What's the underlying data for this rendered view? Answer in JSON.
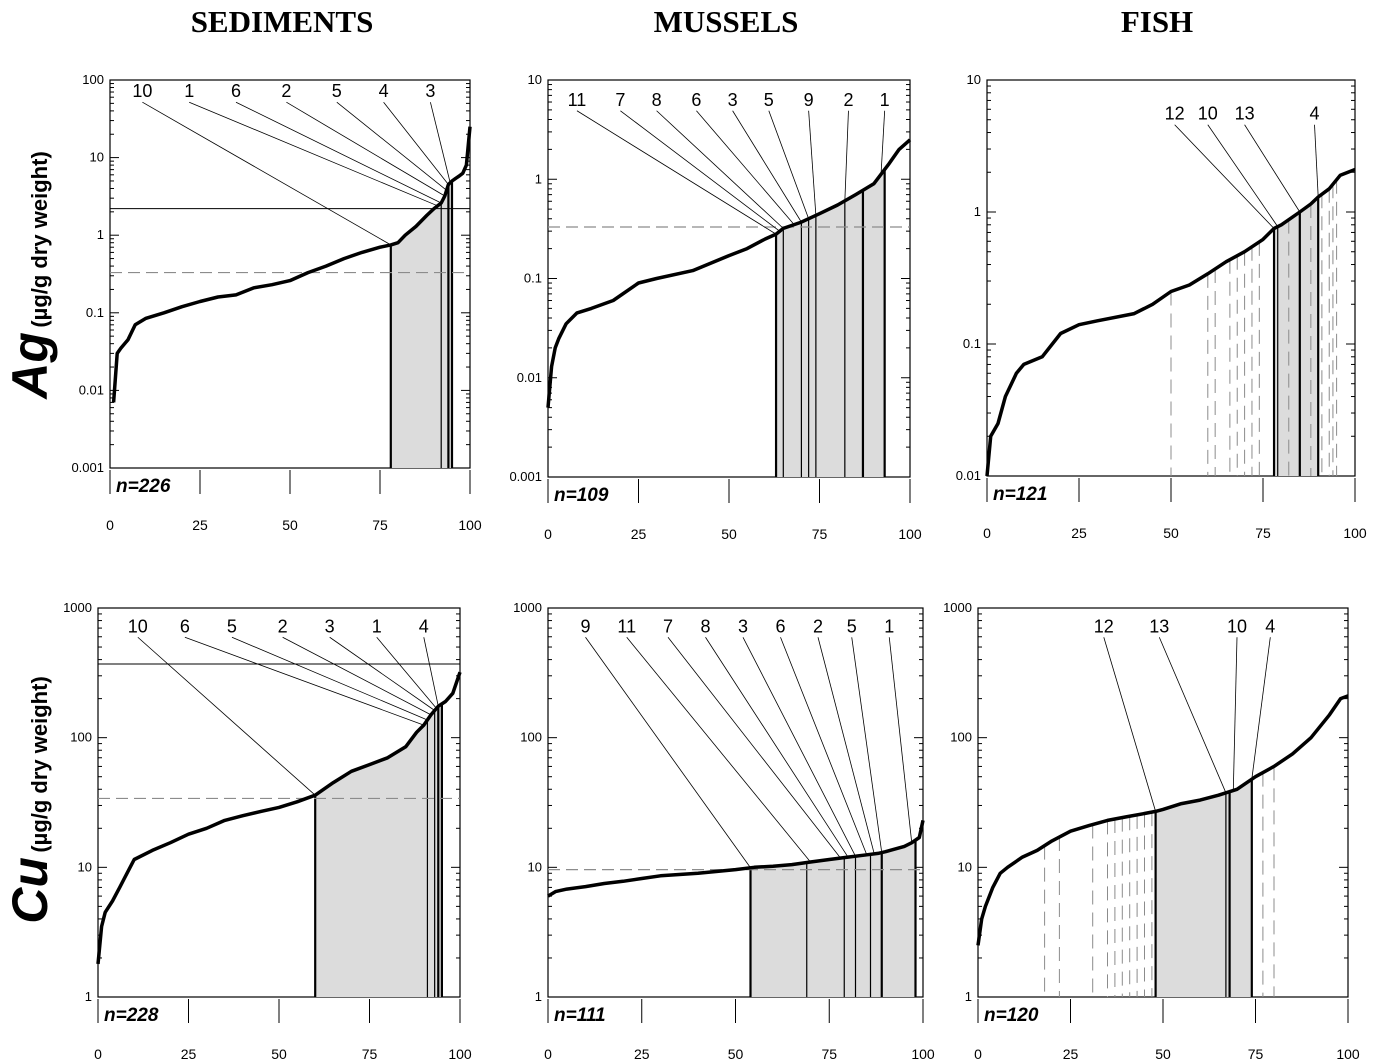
{
  "column_titles": [
    "SEDIMENTS",
    "MUSSELS",
    "FISH"
  ],
  "row_labels": [
    {
      "element": "Ag",
      "unit": "(µg/g dry weight)"
    },
    {
      "element": "Cu",
      "unit": "(µg/g dry weight)"
    }
  ],
  "colors": {
    "line": "#000000",
    "fill": "#dcdcdc",
    "dashed": "#8c8c8c"
  },
  "chart_data": [
    {
      "id": "ag-sediments",
      "type": "line",
      "title": "SEDIMENTS",
      "yscale": "log",
      "xlim": [
        0,
        100
      ],
      "ylim": [
        0.001,
        100
      ],
      "xticks": [
        0,
        25,
        50,
        75,
        100
      ],
      "yticks": [
        0.001,
        0.01,
        0.1,
        1,
        10,
        100
      ],
      "ytick_labels": [
        "0.001",
        "0.01",
        "0.1",
        "1",
        "10",
        "100"
      ],
      "n_label": "n=226",
      "x": [
        1,
        2,
        3,
        5,
        7,
        10,
        15,
        20,
        25,
        30,
        35,
        40,
        45,
        50,
        55,
        60,
        65,
        70,
        75,
        78,
        80,
        82,
        85,
        88,
        90,
        92,
        93,
        94,
        95,
        96,
        97,
        98,
        99,
        100
      ],
      "y": [
        0.007,
        0.03,
        0.035,
        0.045,
        0.07,
        0.085,
        0.1,
        0.12,
        0.14,
        0.16,
        0.17,
        0.21,
        0.23,
        0.26,
        0.33,
        0.4,
        0.5,
        0.6,
        0.7,
        0.75,
        0.8,
        1.0,
        1.3,
        1.8,
        2.2,
        2.6,
        3.2,
        4.5,
        5.0,
        5.4,
        5.8,
        6.3,
        8.0,
        25
      ],
      "solid_hline": 2.2,
      "dashed_hline": 0.33,
      "shade_from": 78,
      "shade_to": 95,
      "shade_lines": [
        78,
        92,
        94,
        95
      ],
      "label_y": 60,
      "stations": [
        {
          "label": "10",
          "lx": 9,
          "px": 78
        },
        {
          "label": "1",
          "lx": 22,
          "px": 91
        },
        {
          "label": "6",
          "lx": 35,
          "px": 92
        },
        {
          "label": "2",
          "lx": 49,
          "px": 93
        },
        {
          "label": "5",
          "lx": 63,
          "px": 93.5
        },
        {
          "label": "4",
          "lx": 76,
          "px": 94
        },
        {
          "label": "3",
          "lx": 89,
          "px": 94.5
        }
      ]
    },
    {
      "id": "ag-mussels",
      "type": "line",
      "title": "MUSSELS",
      "yscale": "log",
      "xlim": [
        0,
        100
      ],
      "ylim": [
        0.001,
        10
      ],
      "xticks": [
        0,
        25,
        50,
        75,
        100
      ],
      "yticks": [
        0.001,
        0.01,
        0.1,
        1,
        10
      ],
      "ytick_labels": [
        "0.001",
        "0.01",
        "0.1",
        "1",
        "10"
      ],
      "n_label": "n=109",
      "x": [
        0,
        1,
        2,
        3,
        5,
        8,
        12,
        18,
        25,
        30,
        40,
        50,
        55,
        60,
        63,
        65,
        70,
        75,
        80,
        85,
        90,
        94,
        97,
        100
      ],
      "y": [
        0.005,
        0.013,
        0.02,
        0.025,
        0.035,
        0.045,
        0.05,
        0.06,
        0.09,
        0.1,
        0.12,
        0.17,
        0.2,
        0.25,
        0.28,
        0.32,
        0.37,
        0.45,
        0.55,
        0.7,
        0.9,
        1.4,
        2.0,
        2.5
      ],
      "solid_hline": null,
      "dashed_hline": 0.33,
      "shade_from": 63,
      "shade_to": 93,
      "shade_lines": [
        63,
        65,
        70,
        72,
        74,
        82,
        87,
        93
      ],
      "label_y": 5.5,
      "stations": [
        {
          "label": "11",
          "lx": 8,
          "px": 63
        },
        {
          "label": "7",
          "lx": 20,
          "px": 64
        },
        {
          "label": "8",
          "lx": 30,
          "px": 65
        },
        {
          "label": "6",
          "lx": 41,
          "px": 68
        },
        {
          "label": "3",
          "lx": 51,
          "px": 70
        },
        {
          "label": "5",
          "lx": 61,
          "px": 72
        },
        {
          "label": "9",
          "lx": 72,
          "px": 74
        },
        {
          "label": "2",
          "lx": 83,
          "px": 82
        },
        {
          "label": "1",
          "lx": 93,
          "px": 92
        }
      ]
    },
    {
      "id": "ag-fish",
      "type": "line",
      "title": "FISH",
      "yscale": "log",
      "xlim": [
        0,
        100
      ],
      "ylim": [
        0.01,
        10
      ],
      "xticks": [
        0,
        25,
        50,
        75,
        100
      ],
      "yticks": [
        0.01,
        0.1,
        1,
        10
      ],
      "ytick_labels": [
        "0.01",
        "0.1",
        "1",
        "10"
      ],
      "n_label": "n=121",
      "x": [
        0,
        1,
        3,
        5,
        8,
        10,
        15,
        20,
        25,
        30,
        40,
        45,
        50,
        55,
        60,
        65,
        70,
        75,
        78,
        80,
        85,
        88,
        90,
        93,
        96,
        100
      ],
      "y": [
        0.01,
        0.02,
        0.025,
        0.04,
        0.06,
        0.07,
        0.08,
        0.12,
        0.14,
        0.15,
        0.17,
        0.2,
        0.25,
        0.28,
        0.34,
        0.42,
        0.5,
        0.62,
        0.75,
        0.8,
        1.0,
        1.15,
        1.3,
        1.5,
        1.9,
        2.1
      ],
      "solid_hline": null,
      "dashed_hline": null,
      "shade_from": 78,
      "shade_to": 90,
      "shade_lines": [
        78,
        79,
        85,
        90
      ],
      "dashed_vlines": [
        50,
        60,
        62,
        66,
        68,
        70,
        72,
        74,
        82,
        88,
        91,
        93,
        94,
        95
      ],
      "label_y": 5.0,
      "stations": [
        {
          "label": "12",
          "lx": 51,
          "px": 78
        },
        {
          "label": "10",
          "lx": 60,
          "px": 79
        },
        {
          "label": "13",
          "lx": 70,
          "px": 85
        },
        {
          "label": "4",
          "lx": 89,
          "px": 90
        }
      ]
    },
    {
      "id": "cu-sediments",
      "type": "line",
      "title": "SEDIMENTS",
      "yscale": "log",
      "xlim": [
        0,
        100
      ],
      "ylim": [
        1,
        1000
      ],
      "xticks": [
        0,
        25,
        50,
        75,
        100
      ],
      "yticks": [
        1,
        10,
        100,
        1000
      ],
      "ytick_labels": [
        "1",
        "10",
        "100",
        "1000"
      ],
      "n_label": "n=228",
      "x": [
        0,
        1,
        2,
        4,
        6,
        8,
        10,
        15,
        20,
        25,
        30,
        35,
        40,
        45,
        50,
        55,
        60,
        65,
        70,
        75,
        80,
        85,
        88,
        90,
        92,
        94,
        96,
        98,
        100
      ],
      "y": [
        1.8,
        3.5,
        4.5,
        5.5,
        7,
        9,
        11.5,
        13.5,
        15.5,
        18,
        20,
        23,
        25,
        27,
        29,
        32,
        36,
        45,
        55,
        62,
        70,
        85,
        110,
        125,
        150,
        175,
        190,
        220,
        320
      ],
      "solid_hline": 370,
      "dashed_hline": 34,
      "shade_from": 60,
      "shade_to": 95,
      "shade_lines": [
        60,
        91,
        93,
        94,
        95
      ],
      "label_y": 650,
      "stations": [
        {
          "label": "10",
          "lx": 11,
          "px": 60
        },
        {
          "label": "6",
          "lx": 24,
          "px": 90
        },
        {
          "label": "5",
          "lx": 37,
          "px": 91
        },
        {
          "label": "2",
          "lx": 51,
          "px": 92
        },
        {
          "label": "3",
          "lx": 64,
          "px": 93
        },
        {
          "label": "1",
          "lx": 77,
          "px": 93.5
        },
        {
          "label": "4",
          "lx": 90,
          "px": 94
        }
      ]
    },
    {
      "id": "cu-mussels",
      "type": "line",
      "title": "MUSSELS",
      "yscale": "log",
      "xlim": [
        0,
        100
      ],
      "ylim": [
        1,
        1000
      ],
      "xticks": [
        0,
        25,
        50,
        75,
        100
      ],
      "yticks": [
        1,
        10,
        100,
        1000
      ],
      "ytick_labels": [
        "1",
        "10",
        "100",
        "1000"
      ],
      "n_label": "n=111",
      "x": [
        0,
        2,
        5,
        10,
        15,
        20,
        25,
        30,
        40,
        50,
        55,
        60,
        65,
        70,
        75,
        80,
        85,
        88,
        90,
        95,
        97,
        99,
        100
      ],
      "y": [
        6,
        6.5,
        6.8,
        7.1,
        7.5,
        7.8,
        8.2,
        8.6,
        9.0,
        9.6,
        10.0,
        10.2,
        10.5,
        11.0,
        11.5,
        12.0,
        12.5,
        12.8,
        13.2,
        14.5,
        15.5,
        17,
        23
      ],
      "solid_hline": null,
      "dashed_hline": 9.6,
      "shade_from": 54,
      "shade_to": 98,
      "shade_lines": [
        54,
        69,
        79,
        82,
        86,
        89,
        98
      ],
      "label_y": 650,
      "stations": [
        {
          "label": "9",
          "lx": 10,
          "px": 54
        },
        {
          "label": "11",
          "lx": 21,
          "px": 70
        },
        {
          "label": "7",
          "lx": 32,
          "px": 78
        },
        {
          "label": "8",
          "lx": 42,
          "px": 80
        },
        {
          "label": "3",
          "lx": 52,
          "px": 82
        },
        {
          "label": "6",
          "lx": 62,
          "px": 85
        },
        {
          "label": "2",
          "lx": 72,
          "px": 87
        },
        {
          "label": "5",
          "lx": 81,
          "px": 89
        },
        {
          "label": "1",
          "lx": 91,
          "px": 97
        }
      ]
    },
    {
      "id": "cu-fish",
      "type": "line",
      "title": "FISH",
      "yscale": "log",
      "xlim": [
        0,
        100
      ],
      "ylim": [
        1,
        1000
      ],
      "xticks": [
        0,
        25,
        50,
        75,
        100
      ],
      "yticks": [
        1,
        10,
        100,
        1000
      ],
      "ytick_labels": [
        "1",
        "10",
        "100",
        "1000"
      ],
      "n_label": "n=120",
      "x": [
        0,
        1,
        2,
        4,
        6,
        8,
        12,
        16,
        20,
        25,
        30,
        35,
        40,
        45,
        48,
        50,
        55,
        60,
        65,
        70,
        75,
        80,
        85,
        90,
        95,
        98,
        100
      ],
      "y": [
        2.5,
        4,
        5,
        7,
        9,
        10,
        12,
        13.5,
        16,
        19,
        21,
        23,
        24.5,
        26,
        27,
        28,
        31,
        33,
        36,
        40,
        50,
        60,
        75,
        100,
        150,
        200,
        210
      ],
      "solid_hline": null,
      "dashed_hline": null,
      "shade_from": 48,
      "shade_to": 74,
      "shade_lines": [
        48,
        67,
        68,
        74
      ],
      "dashed_vlines": [
        18,
        22,
        31,
        35,
        37,
        39,
        41,
        43,
        45,
        47,
        77,
        80
      ],
      "label_y": 650,
      "stations": [
        {
          "label": "12",
          "lx": 34,
          "px": 48
        },
        {
          "label": "13",
          "lx": 49,
          "px": 67
        },
        {
          "label": "10",
          "lx": 70,
          "px": 69
        },
        {
          "label": "4",
          "lx": 79,
          "px": 74
        }
      ]
    }
  ]
}
